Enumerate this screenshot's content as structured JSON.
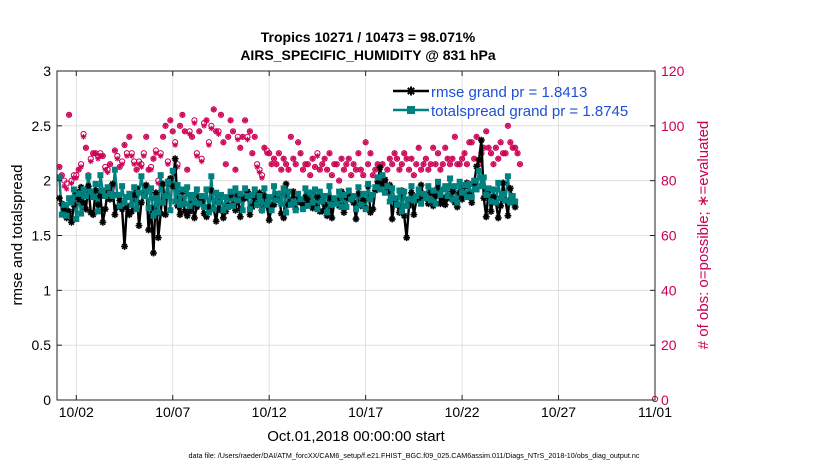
{
  "chart_data": {
    "type": "line",
    "title_line1": "Tropics 10271 / 10473 = 98.071%",
    "title_line2": "AIRS_SPECIFIC_HUMIDITY @ 831 hPa",
    "ylabel": "rmse and totalspread",
    "ylabel_right": "# of obs: o=possible; ∗=evaluated",
    "xlabel": "Oct.01,2018 00:00:00 start",
    "footer": "data file: /Users/raeder/DAI/ATM_forcXX/CAM6_setup/f.e21.FHIST_BGC.f09_025.CAM6assim.011/Diags_NTrS_2018-10/obs_diag_output.nc",
    "xlim": [
      0,
      31
    ],
    "ylim": [
      0,
      3
    ],
    "ylim_right": [
      0,
      120
    ],
    "x_ticks": [
      {
        "value": 1,
        "label": "10/02"
      },
      {
        "value": 6,
        "label": "10/07"
      },
      {
        "value": 11,
        "label": "10/12"
      },
      {
        "value": 16,
        "label": "10/17"
      },
      {
        "value": 21,
        "label": "10/22"
      },
      {
        "value": 26,
        "label": "10/27"
      },
      {
        "value": 31,
        "label": "11/01"
      }
    ],
    "y_ticks": [
      {
        "value": 0,
        "label": "0"
      },
      {
        "value": 0.5,
        "label": "0.5"
      },
      {
        "value": 1,
        "label": "1"
      },
      {
        "value": 1.5,
        "label": "1.5"
      },
      {
        "value": 2,
        "label": "2"
      },
      {
        "value": 2.5,
        "label": "2.5"
      },
      {
        "value": 3,
        "label": "3"
      }
    ],
    "y_ticks_right": [
      {
        "value": 0,
        "label": "0"
      },
      {
        "value": 20,
        "label": "20"
      },
      {
        "value": 40,
        "label": "40"
      },
      {
        "value": 60,
        "label": "60"
      },
      {
        "value": 80,
        "label": "80"
      },
      {
        "value": 100,
        "label": "100"
      },
      {
        "value": 120,
        "label": "120"
      }
    ],
    "grid": true,
    "legend_position": "top-right",
    "x_start": 0.125,
    "x_step": 0.125,
    "series": [
      {
        "name": "rmse",
        "legend_label": "rmse grand pr = 1.8413",
        "color": "#000000",
        "marker": "asterisk",
        "values": [
          1.84,
          1.79,
          1.74,
          1.66,
          1.72,
          1.62,
          1.78,
          1.9,
          1.83,
          1.94,
          1.8,
          1.74,
          1.95,
          1.71,
          1.69,
          1.91,
          1.78,
          1.86,
          1.62,
          1.74,
          1.9,
          1.83,
          1.97,
          1.69,
          1.76,
          1.82,
          1.74,
          1.4,
          1.77,
          1.69,
          1.72,
          1.87,
          1.93,
          1.59,
          1.8,
          1.87,
          1.96,
          1.55,
          1.75,
          1.34,
          1.89,
          1.48,
          1.7,
          1.97,
          1.69,
          1.99,
          2.02,
          1.95,
          2.2,
          1.77,
          1.69,
          1.9,
          1.72,
          1.68,
          1.72,
          1.79,
          1.66,
          1.76,
          1.85,
          1.81,
          1.7,
          1.67,
          1.76,
          1.91,
          1.74,
          1.63,
          1.8,
          1.73,
          1.66,
          1.72,
          1.77,
          1.87,
          1.78,
          1.73,
          1.86,
          1.67,
          1.84,
          1.84,
          1.9,
          1.69,
          1.76,
          1.85,
          1.78,
          1.89,
          1.73,
          1.86,
          1.77,
          1.64,
          1.76,
          1.78,
          1.84,
          1.88,
          1.7,
          1.66,
          1.97,
          1.78,
          1.81,
          1.9,
          1.74,
          1.85,
          1.8,
          1.78,
          1.85,
          1.82,
          1.89,
          1.75,
          1.77,
          1.85,
          1.72,
          1.72,
          1.78,
          1.68,
          1.84,
          1.66,
          1.8,
          1.82,
          1.77,
          1.9,
          1.71,
          1.85,
          1.84,
          1.86,
          1.8,
          1.65,
          1.88,
          1.77,
          1.82,
          1.75,
          1.95,
          1.71,
          1.74,
          1.91,
          1.99,
          2.12,
          1.97,
          2.01,
          1.9,
          1.96,
          1.65,
          1.83,
          1.78,
          1.71,
          1.91,
          1.68,
          1.48,
          1.77,
          1.89,
          1.69,
          1.82,
          1.84,
          1.96,
          1.86,
          1.84,
          1.79,
          1.89,
          1.77,
          1.86,
          1.94,
          1.79,
          1.85,
          1.78,
          1.84,
          1.84,
          1.9,
          1.8,
          1.76,
          1.89,
          1.83,
          1.95,
          1.98,
          1.87,
          1.8,
          1.98,
          2.13,
          2.19,
          2.37,
          1.84,
          1.67,
          1.91,
          1.72,
          1.85,
          1.8,
          1.66,
          1.77,
          1.98,
          1.82,
          1.68,
          1.93,
          1.8,
          1.76
        ]
      },
      {
        "name": "totalspread",
        "legend_label": "totalspread grand pr = 1.8745",
        "color": "#00807f",
        "marker": "square",
        "values": [
          2.03,
          1.69,
          1.78,
          1.68,
          1.84,
          1.8,
          1.92,
          1.65,
          1.88,
          1.7,
          1.92,
          1.86,
          2.04,
          1.9,
          1.85,
          1.97,
          1.72,
          2.05,
          1.91,
          1.86,
          1.94,
          1.88,
          1.86,
          2.1,
          1.87,
          1.77,
          1.95,
          1.8,
          1.85,
          1.88,
          1.78,
          1.94,
          1.74,
          1.89,
          2.04,
          1.86,
          1.9,
          1.75,
          1.93,
          1.68,
          1.84,
          1.71,
          2.05,
          1.8,
          1.86,
          1.99,
          1.73,
          2.09,
          1.81,
          1.96,
          1.78,
          1.92,
          1.79,
          1.94,
          1.77,
          1.87,
          1.8,
          1.92,
          1.79,
          1.86,
          1.76,
          1.92,
          1.71,
          2.04,
          1.74,
          1.89,
          1.8,
          1.87,
          1.73,
          1.85,
          1.76,
          1.9,
          1.77,
          1.93,
          1.82,
          1.88,
          1.73,
          1.93,
          1.86,
          1.74,
          1.87,
          1.92,
          1.78,
          1.86,
          1.73,
          1.93,
          1.78,
          1.85,
          1.73,
          1.95,
          1.82,
          1.88,
          1.79,
          1.93,
          1.71,
          1.9,
          1.78,
          1.81,
          1.73,
          1.88,
          1.83,
          1.74,
          1.93,
          1.77,
          1.89,
          1.8,
          1.92,
          1.74,
          1.9,
          1.81,
          1.86,
          1.71,
          1.95,
          1.78,
          1.84,
          1.79,
          1.9,
          1.76,
          1.87,
          1.76,
          1.91,
          1.83,
          1.86,
          1.74,
          1.94,
          1.78,
          1.88,
          1.74,
          1.97,
          1.83,
          1.87,
          1.94,
          2.03,
          1.92,
          2.05,
          1.89,
          1.95,
          1.81,
          1.93,
          1.84,
          1.78,
          1.91,
          1.72,
          1.9,
          1.77,
          1.83,
          1.95,
          1.82,
          1.86,
          1.92,
          1.79,
          1.88,
          1.84,
          1.95,
          1.82,
          1.91,
          1.79,
          1.99,
          1.87,
          1.92,
          1.95,
          1.86,
          2.02,
          1.83,
          1.95,
          1.8,
          1.99,
          1.89,
          1.96,
          1.85,
          1.97,
          1.85,
          2.0,
          1.92,
          2.09,
          1.95,
          2.03,
          1.87,
          1.93,
          1.81,
          1.92,
          1.8,
          1.98,
          1.84,
          1.88,
          1.82,
          2.04,
          1.8,
          1.86,
          1.81
        ]
      }
    ],
    "obs_possible": [
      85,
      82,
      80,
      79,
      104,
      80,
      82,
      82,
      84,
      86,
      97,
      92,
      82,
      88,
      90,
      90,
      89,
      90,
      89,
      85,
      84,
      86,
      78,
      91,
      89,
      85,
      87,
      93,
      90,
      96,
      90,
      87,
      84,
      87,
      86,
      90,
      96,
      84,
      85,
      88,
      91,
      80,
      90,
      96,
      100,
      87,
      102,
      98,
      94,
      86,
      100,
      104,
      98,
      84,
      98,
      96,
      102,
      90,
      98,
      88,
      101,
      102,
      94,
      100,
      106,
      98,
      98,
      104,
      94,
      86,
      96,
      102,
      98,
      84,
      96,
      92,
      96,
      102,
      96,
      98,
      90,
      96,
      86,
      84,
      82,
      92,
      91,
      90,
      86,
      88,
      86,
      90,
      84,
      88,
      86,
      84,
      96,
      88,
      86,
      94,
      90,
      84,
      86,
      86,
      82,
      88,
      85,
      90,
      84,
      86,
      88,
      84,
      90,
      82,
      86,
      86,
      80,
      88,
      84,
      86,
      88,
      82,
      86,
      84,
      90,
      84,
      82,
      94,
      86,
      90,
      82,
      84,
      86,
      80,
      86,
      80,
      84,
      88,
      86,
      90,
      88,
      84,
      86,
      90,
      88,
      84,
      88,
      82,
      86,
      92,
      84,
      86,
      88,
      84,
      86,
      92,
      86,
      90,
      84,
      86,
      92,
      88,
      86,
      88,
      96,
      86,
      86,
      88,
      90,
      86,
      94,
      94,
      88,
      96,
      86,
      90,
      92,
      98,
      92,
      90,
      86,
      92,
      88,
      94,
      90,
      90,
      100,
      94,
      92,
      92,
      90,
      86
    ],
    "obs_evaluated": [
      85,
      82,
      78,
      77,
      104,
      79,
      81,
      81,
      84,
      85,
      96,
      92,
      81,
      87,
      90,
      90,
      88,
      89,
      89,
      84,
      83,
      86,
      77,
      91,
      88,
      85,
      86,
      93,
      89,
      96,
      89,
      86,
      84,
      86,
      85,
      89,
      96,
      84,
      84,
      88,
      90,
      79,
      89,
      96,
      100,
      86,
      102,
      98,
      93,
      85,
      100,
      104,
      98,
      84,
      97,
      96,
      101,
      89,
      98,
      87,
      100,
      102,
      93,
      99,
      106,
      98,
      97,
      104,
      94,
      86,
      96,
      102,
      98,
      84,
      95,
      92,
      96,
      102,
      95,
      98,
      90,
      96,
      85,
      83,
      81,
      92,
      90,
      90,
      86,
      88,
      86,
      90,
      84,
      88,
      86,
      84,
      96,
      88,
      86,
      94,
      90,
      84,
      86,
      86,
      82,
      88,
      85,
      89,
      84,
      86,
      88,
      84,
      90,
      82,
      86,
      86,
      80,
      88,
      84,
      86,
      88,
      82,
      86,
      84,
      90,
      84,
      82,
      94,
      86,
      90,
      82,
      84,
      86,
      80,
      86,
      80,
      84,
      88,
      86,
      90,
      88,
      84,
      86,
      90,
      88,
      84,
      88,
      82,
      86,
      92,
      84,
      86,
      88,
      84,
      86,
      92,
      86,
      90,
      84,
      86,
      92,
      88,
      86,
      88,
      96,
      86,
      86,
      88,
      90,
      86,
      94,
      94,
      88,
      96,
      86,
      90,
      92,
      98,
      92,
      90,
      86,
      92,
      88,
      94,
      90,
      90,
      100,
      94,
      92,
      92,
      90,
      86
    ],
    "colors": {
      "rmse": "#000000",
      "totalspread": "#00807f",
      "obs": "#cc0055",
      "legend_text": "#1f4fd6",
      "grid": "#d9d9d9"
    }
  }
}
